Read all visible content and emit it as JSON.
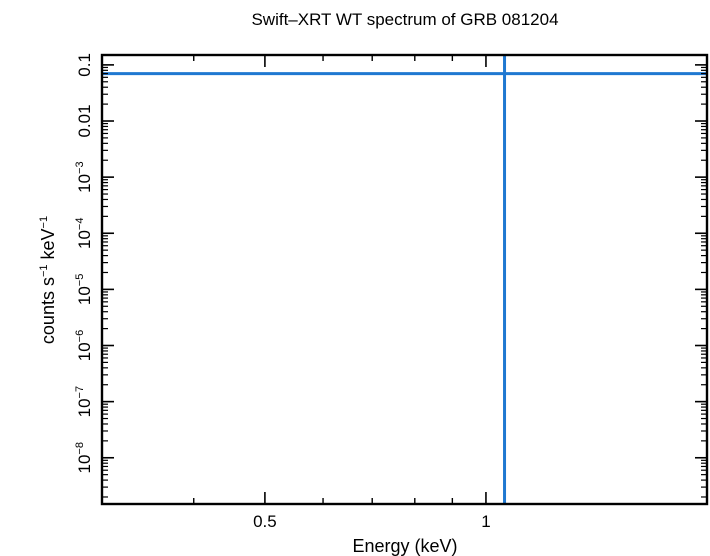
{
  "chart_data": {
    "type": "line",
    "title": "Swift–XRT WT spectrum of GRB 081204",
    "xlabel": "Energy (keV)",
    "ylabel": {
      "prefix": "counts s",
      "exp1": "−1",
      "middle": " keV",
      "exp2": "−1"
    },
    "x_scale": "log",
    "y_scale": "log",
    "xlim": [
      0.3,
      2.0
    ],
    "ylim": [
      1.5e-09,
      0.15
    ],
    "x_ticks_major": [
      {
        "value": 0.5,
        "label": "0.5"
      },
      {
        "value": 1.0,
        "label": "1"
      }
    ],
    "x_ticks_minor": [
      0.4,
      0.6,
      0.7,
      0.8,
      0.9,
      2.0
    ],
    "y_ticks_major": [
      {
        "value": 0.1,
        "base": "0.1",
        "exp": ""
      },
      {
        "value": 0.01,
        "base": "0.01",
        "exp": ""
      },
      {
        "value": 0.001,
        "base": "10",
        "exp": "−3"
      },
      {
        "value": 0.0001,
        "base": "10",
        "exp": "−4"
      },
      {
        "value": 1e-05,
        "base": "10",
        "exp": "−5"
      },
      {
        "value": 1e-06,
        "base": "10",
        "exp": "−6"
      },
      {
        "value": 1e-07,
        "base": "10",
        "exp": "−7"
      },
      {
        "value": 1e-08,
        "base": "10",
        "exp": "−8"
      }
    ],
    "lines": [
      {
        "orientation": "horizontal",
        "value": 0.07,
        "color": "#1f78d1"
      },
      {
        "orientation": "vertical",
        "value": 1.06,
        "color": "#1f78d1"
      }
    ],
    "grid": false,
    "legend": "none"
  }
}
